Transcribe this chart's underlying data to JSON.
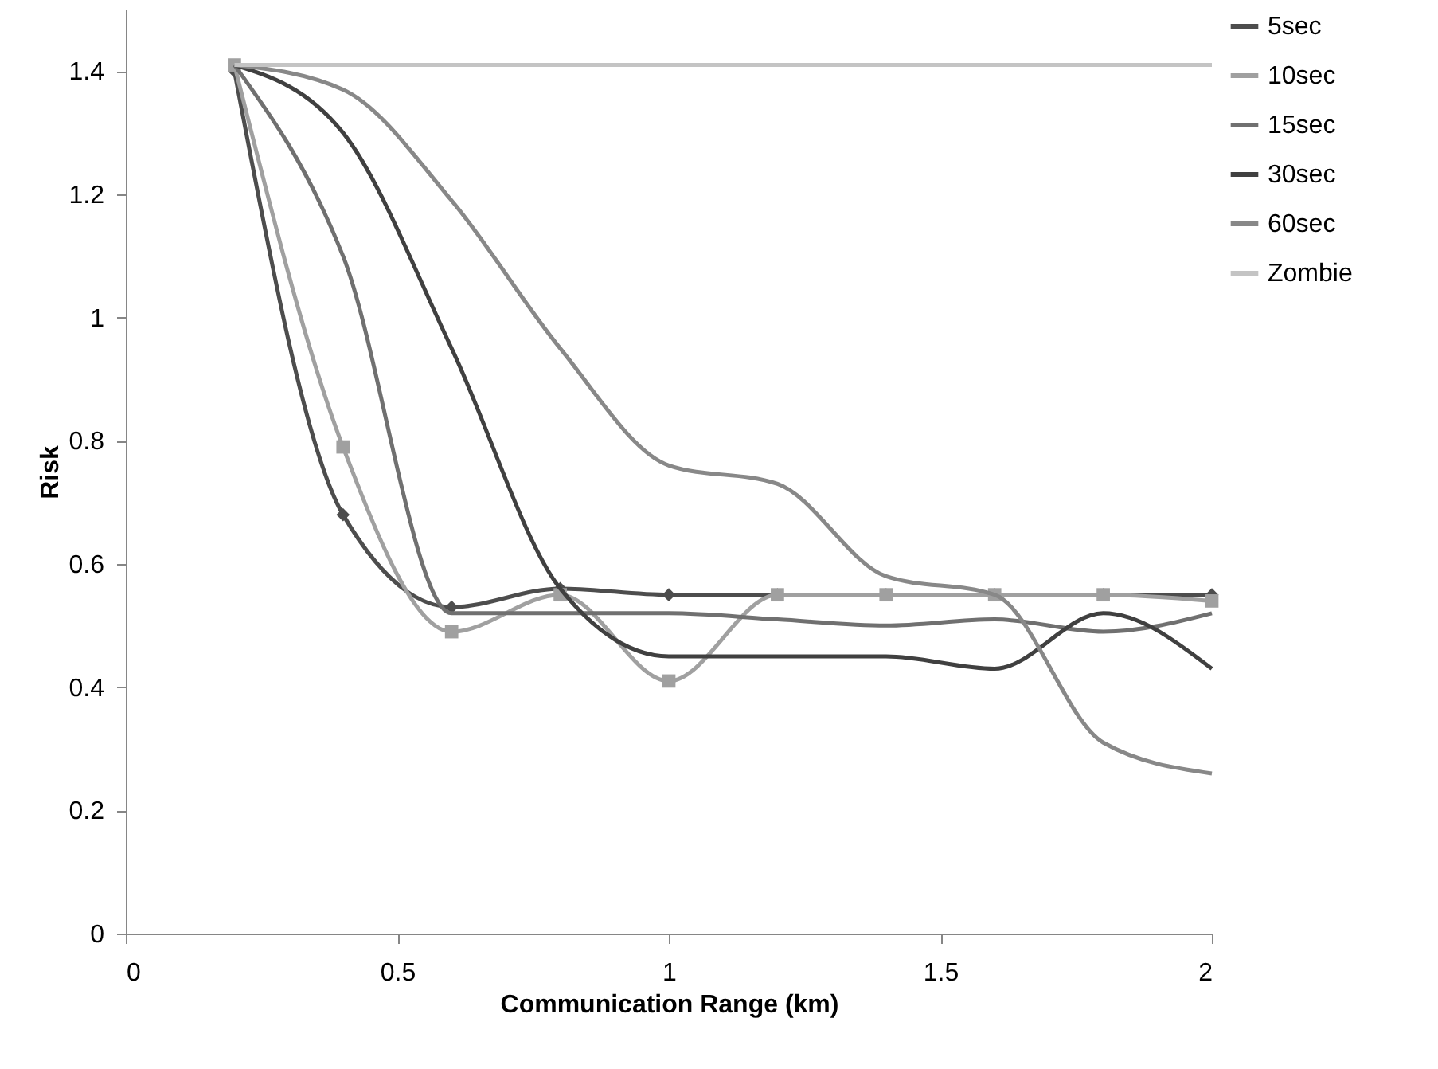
{
  "chart_data": {
    "type": "line",
    "xlabel": "Communication Range (km)",
    "ylabel": "Risk",
    "x": [
      0.2,
      0.4,
      0.6,
      0.8,
      1.0,
      1.2,
      1.4,
      1.6,
      1.8,
      2.0
    ],
    "series": [
      {
        "name": "5sec",
        "color": "#4d4d4d",
        "marker": "diamond",
        "values": [
          1.4,
          0.68,
          0.53,
          0.56,
          0.55,
          0.55,
          0.55,
          0.55,
          0.55,
          0.55
        ]
      },
      {
        "name": "10sec",
        "color": "#a0a0a0",
        "marker": "square",
        "values": [
          1.41,
          0.79,
          0.49,
          0.55,
          0.41,
          0.55,
          0.55,
          0.55,
          0.55,
          0.54
        ]
      },
      {
        "name": "15sec",
        "color": "#707070",
        "values": [
          1.41,
          1.1,
          0.52,
          0.52,
          0.52,
          0.51,
          0.5,
          0.51,
          0.49,
          0.52
        ]
      },
      {
        "name": "30sec",
        "color": "#404040",
        "values": [
          1.41,
          1.3,
          0.95,
          0.56,
          0.45,
          0.45,
          0.45,
          0.43,
          0.52,
          0.43
        ]
      },
      {
        "name": "60sec",
        "color": "#888888",
        "values": [
          1.41,
          1.37,
          1.19,
          0.95,
          0.76,
          0.73,
          0.58,
          0.55,
          0.31,
          0.26
        ]
      },
      {
        "name": "Zombie",
        "color": "#c4c4c4",
        "values": [
          1.41,
          1.41,
          1.41,
          1.41,
          1.41,
          1.41,
          1.41,
          1.41,
          1.41,
          1.41
        ]
      }
    ],
    "xlim": [
      0,
      2
    ],
    "xticks": [
      0,
      0.5,
      1,
      1.5,
      2
    ],
    "ylim": [
      0,
      1.5
    ],
    "yticks": [
      0,
      0.2,
      0.4,
      0.6,
      0.8,
      1,
      1.2,
      1.4
    ],
    "grid": false,
    "legend": "right",
    "marker": "none",
    "line_style": "solid"
  }
}
